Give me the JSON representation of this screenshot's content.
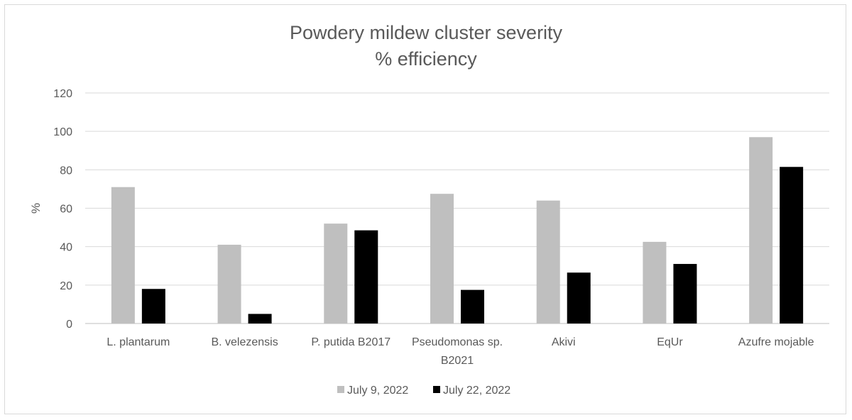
{
  "chart_data": {
    "type": "bar",
    "title": [
      "Powdery mildew cluster severity",
      "% efficiency"
    ],
    "xlabel": "",
    "ylabel": "%",
    "ylim": [
      0,
      120
    ],
    "yticks": [
      0,
      20,
      40,
      60,
      80,
      100,
      120
    ],
    "grid": true,
    "legend_position": "bottom",
    "categories": [
      [
        "L. plantarum"
      ],
      [
        "B. velezensis"
      ],
      [
        "P. putida B2017"
      ],
      [
        "Pseudomonas sp.",
        "B2021"
      ],
      [
        "Akivi"
      ],
      [
        "EqUr"
      ],
      [
        "Azufre mojable"
      ]
    ],
    "series": [
      {
        "name": "July 9, 2022",
        "color": "#bfbfbf",
        "values": [
          71,
          41,
          52,
          67.5,
          64,
          42.5,
          97
        ]
      },
      {
        "name": "July 22, 2022",
        "color": "#000000",
        "values": [
          18,
          5,
          48.5,
          17.5,
          26.5,
          31,
          81.5
        ]
      }
    ]
  }
}
